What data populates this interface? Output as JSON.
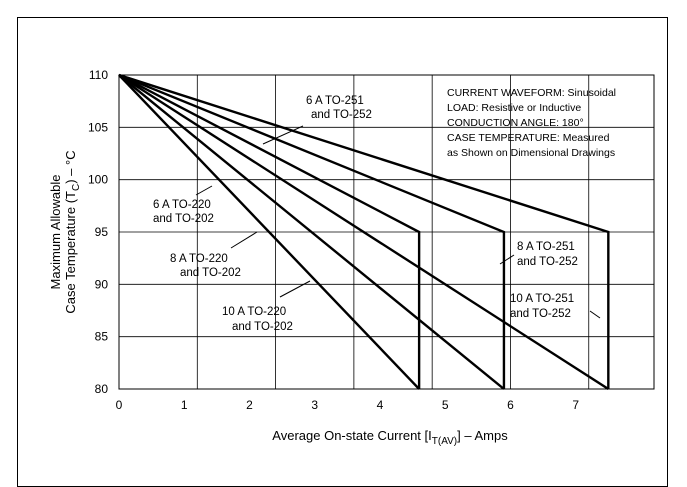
{
  "chart_data": {
    "type": "line",
    "xlabel_main": "Average On-state Current [I",
    "xlabel_sub": "T(AV)",
    "xlabel_end": "] – Amps",
    "ylabel_line1": "Maximum Allowable",
    "ylabel_line2_main": "Case Temperature (T",
    "ylabel_line2_sub": "C",
    "ylabel_line2_end": ") – °C",
    "xlim": [
      0,
      8.2
    ],
    "ylim": [
      80,
      110
    ],
    "xticks": [
      0,
      1,
      2,
      3,
      4,
      5,
      6,
      7
    ],
    "yticks": [
      80,
      85,
      90,
      95,
      100,
      105,
      110
    ],
    "grid": true,
    "series": [
      {
        "name": "6 A TO-220 and TO-202",
        "x": [
          0,
          4.6,
          4.6
        ],
        "y": [
          110,
          95,
          80
        ]
      },
      {
        "name": "6 A TO-251 and TO-252",
        "x": [
          0,
          4.6
        ],
        "y": [
          110,
          80
        ]
      },
      {
        "name": "8 A TO-220 and TO-202",
        "x": [
          0,
          5.9,
          5.9
        ],
        "y": [
          110,
          95,
          80
        ]
      },
      {
        "name": "8 A TO-251 and TO-252",
        "x": [
          0,
          5.9
        ],
        "y": [
          110,
          80
        ]
      },
      {
        "name": "10 A TO-220 and TO-202",
        "x": [
          0,
          7.5,
          7.5
        ],
        "y": [
          110,
          95,
          80
        ]
      },
      {
        "name": "10 A TO-251 and TO-252",
        "x": [
          0,
          7.5
        ],
        "y": [
          110,
          80
        ]
      }
    ],
    "annotations": {
      "six_a_251": [
        "6 A TO-251",
        "and TO-252"
      ],
      "six_a_220": [
        "6 A TO-220",
        "and TO-202"
      ],
      "eight_a_220": [
        "8 A TO-220",
        "and TO-202"
      ],
      "eight_a_251": [
        "8 A TO-251",
        "and TO-252"
      ],
      "ten_a_220": [
        "10 A TO-220",
        "and TO-202"
      ],
      "ten_a_251": [
        "10 A TO-251",
        "and TO-252"
      ]
    },
    "conditions": [
      "CURRENT WAVEFORM: Sinusoidal",
      "LOAD: Resistive or Inductive",
      "CONDUCTION ANGLE: 180°",
      "CASE TEMPERATURE: Measured",
      "as Shown on Dimensional Drawings"
    ]
  }
}
